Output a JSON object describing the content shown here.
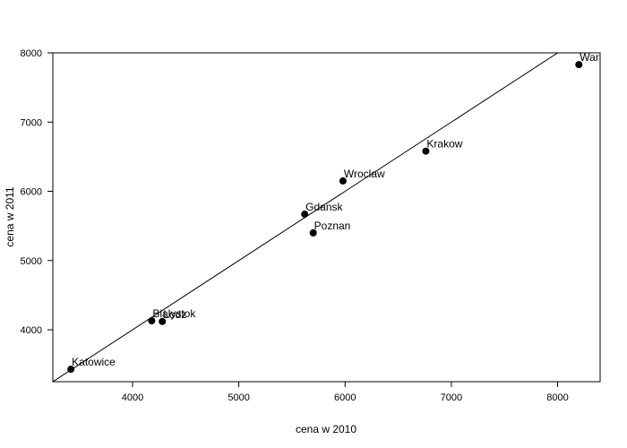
{
  "chart_data": {
    "type": "scatter",
    "xlabel": "cena w 2010",
    "ylabel": "cena w 2011",
    "xlim": [
      3250,
      8400
    ],
    "ylim": [
      3250,
      8000
    ],
    "xticks": [
      4000,
      5000,
      6000,
      7000,
      8000
    ],
    "yticks": [
      4000,
      5000,
      6000,
      7000,
      8000
    ],
    "grid": false,
    "points": [
      {
        "label": "Warszawa",
        "x": 8200,
        "y": 7830
      },
      {
        "label": "Krakow",
        "x": 6760,
        "y": 6580
      },
      {
        "label": "Wroclaw",
        "x": 5980,
        "y": 6150
      },
      {
        "label": "Gdansk",
        "x": 5620,
        "y": 5670
      },
      {
        "label": "Poznan",
        "x": 5700,
        "y": 5400
      },
      {
        "label": "Bialystok",
        "x": 4180,
        "y": 4130
      },
      {
        "label": "Lodz",
        "x": 4280,
        "y": 4120
      },
      {
        "label": "Katowice",
        "x": 3420,
        "y": 3430
      }
    ],
    "reference_line": {
      "slope": 1,
      "intercept": 0
    }
  }
}
